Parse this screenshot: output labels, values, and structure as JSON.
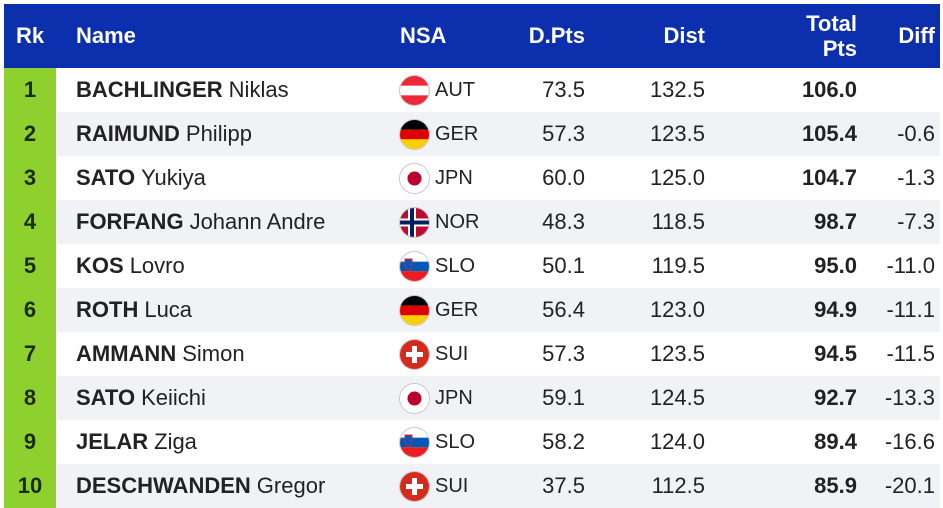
{
  "headers": {
    "rk": "Rk",
    "name": "Name",
    "nsa": "NSA",
    "dpts": "D.Pts",
    "dist": "Dist",
    "total_line1": "Total",
    "total_line2": "Pts",
    "diff": "Diff"
  },
  "colors": {
    "header_bg": "#0b2fad",
    "rank_bg": "#8ed12f",
    "row_alt_bg": "#f1f2f6"
  },
  "rows": [
    {
      "rk": "1",
      "last": "BACHLINGER",
      "first": "Niklas",
      "flag": "austria-flag-icon",
      "nsa": "AUT",
      "dpts": "73.5",
      "dist": "132.5",
      "total": "106.0",
      "diff": ""
    },
    {
      "rk": "2",
      "last": "RAIMUND",
      "first": "Philipp",
      "flag": "germany-flag-icon",
      "nsa": "GER",
      "dpts": "57.3",
      "dist": "123.5",
      "total": "105.4",
      "diff": "-0.6"
    },
    {
      "rk": "3",
      "last": "SATO",
      "first": "Yukiya",
      "flag": "japan-flag-icon",
      "nsa": "JPN",
      "dpts": "60.0",
      "dist": "125.0",
      "total": "104.7",
      "diff": "-1.3"
    },
    {
      "rk": "4",
      "last": "FORFANG",
      "first": "Johann Andre",
      "flag": "norway-flag-icon",
      "nsa": "NOR",
      "dpts": "48.3",
      "dist": "118.5",
      "total": "98.7",
      "diff": "-7.3"
    },
    {
      "rk": "5",
      "last": "KOS",
      "first": "Lovro",
      "flag": "slovenia-flag-icon",
      "nsa": "SLO",
      "dpts": "50.1",
      "dist": "119.5",
      "total": "95.0",
      "diff": "-11.0"
    },
    {
      "rk": "6",
      "last": "ROTH",
      "first": "Luca",
      "flag": "germany-flag-icon",
      "nsa": "GER",
      "dpts": "56.4",
      "dist": "123.0",
      "total": "94.9",
      "diff": "-11.1"
    },
    {
      "rk": "7",
      "last": "AMMANN",
      "first": "Simon",
      "flag": "switzerland-flag-icon",
      "nsa": "SUI",
      "dpts": "57.3",
      "dist": "123.5",
      "total": "94.5",
      "diff": "-11.5"
    },
    {
      "rk": "8",
      "last": "SATO",
      "first": "Keiichi",
      "flag": "japan-flag-icon",
      "nsa": "JPN",
      "dpts": "59.1",
      "dist": "124.5",
      "total": "92.7",
      "diff": "-13.3"
    },
    {
      "rk": "9",
      "last": "JELAR",
      "first": "Ziga",
      "flag": "slovenia-flag-icon",
      "nsa": "SLO",
      "dpts": "58.2",
      "dist": "124.0",
      "total": "89.4",
      "diff": "-16.6"
    },
    {
      "rk": "10",
      "last": "DESCHWANDEN",
      "first": "Gregor",
      "flag": "switzerland-flag-icon",
      "nsa": "SUI",
      "dpts": "37.5",
      "dist": "112.5",
      "total": "85.9",
      "diff": "-20.1"
    }
  ]
}
